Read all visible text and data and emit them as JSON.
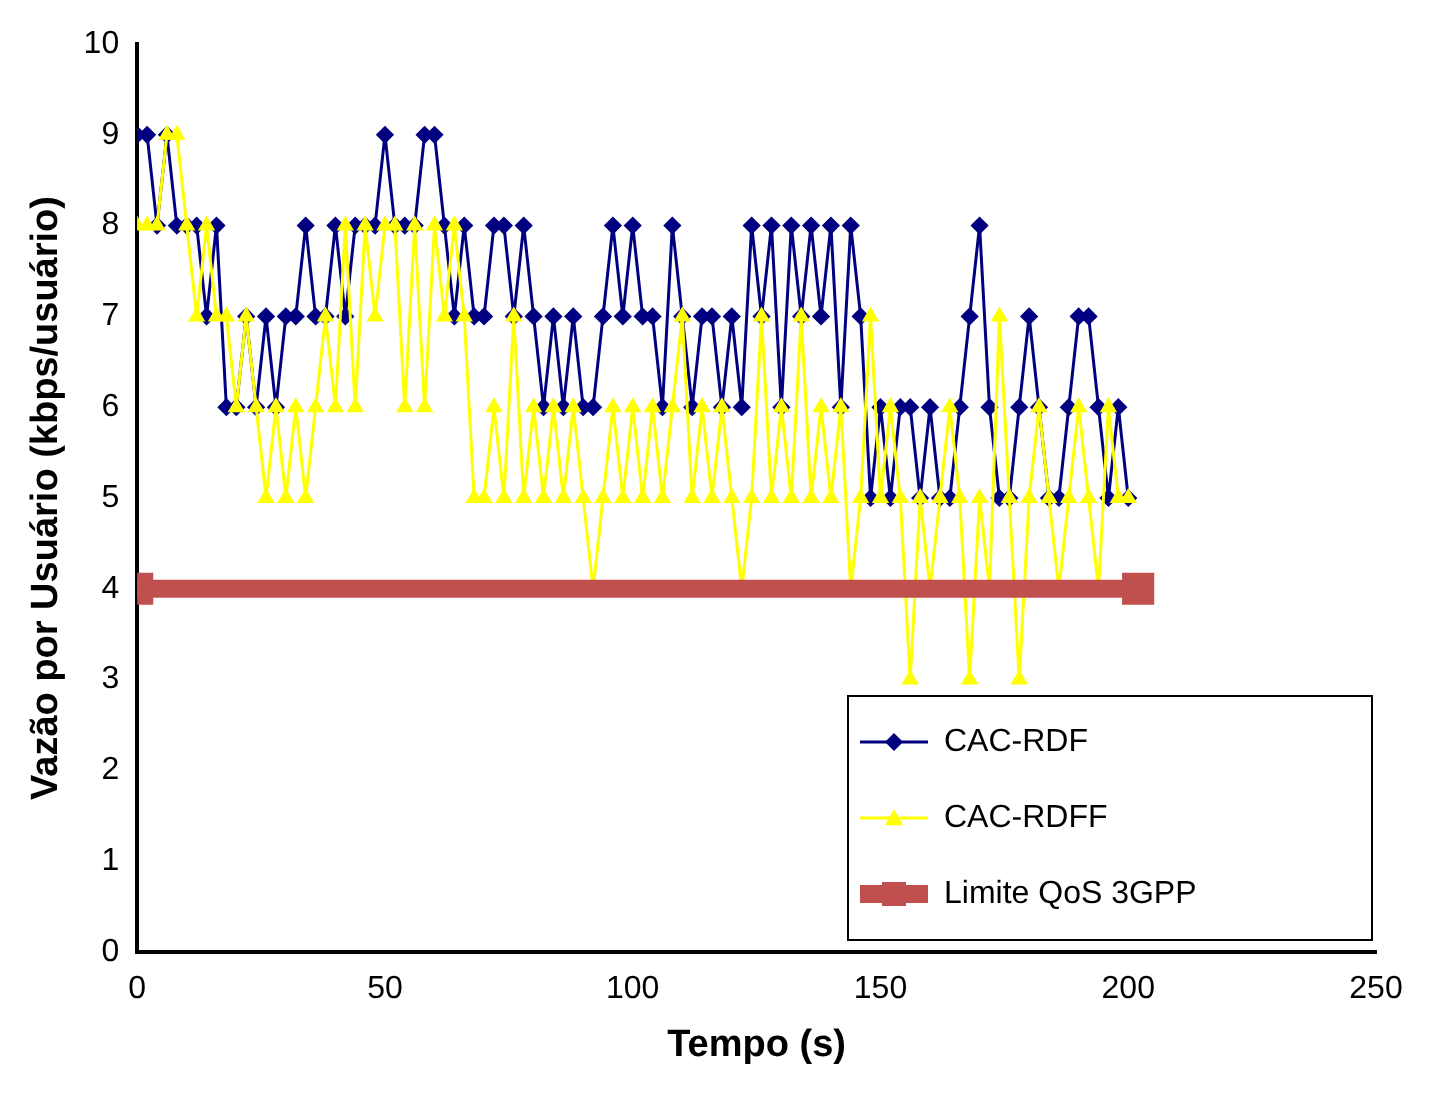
{
  "chart_data": {
    "type": "line",
    "xlabel": "Tempo (s)",
    "ylabel": "Vazão por Usuário (kbps/usuário)",
    "xlim": [
      0,
      250
    ],
    "xticks": [
      0,
      50,
      100,
      150,
      200,
      250
    ],
    "ylim": [
      0,
      10
    ],
    "yticks": [
      0,
      1,
      2,
      3,
      4,
      5,
      6,
      7,
      8,
      9,
      10
    ],
    "grid": false,
    "legend": "bottom right",
    "series": [
      {
        "name": "CAC-RDF",
        "color": "#000080",
        "marker": "diamond",
        "x": [
          0,
          2,
          4,
          6,
          8,
          10,
          12,
          14,
          16,
          18,
          20,
          22,
          24,
          26,
          28,
          30,
          32,
          34,
          36,
          38,
          40,
          42,
          44,
          46,
          48,
          50,
          52,
          54,
          56,
          58,
          60,
          62,
          64,
          66,
          68,
          70,
          72,
          74,
          76,
          78,
          80,
          82,
          84,
          86,
          88,
          90,
          92,
          94,
          96,
          98,
          100,
          102,
          104,
          106,
          108,
          110,
          112,
          114,
          116,
          118,
          120,
          122,
          124,
          126,
          128,
          130,
          132,
          134,
          136,
          138,
          140,
          142,
          144,
          146,
          148,
          150,
          152,
          154,
          156,
          158,
          160,
          162,
          164,
          166,
          168,
          170,
          172,
          174,
          176,
          178,
          180,
          182,
          184,
          186,
          188,
          190,
          192,
          194,
          196,
          198,
          200
        ],
        "values": [
          9,
          9,
          8,
          9,
          8,
          8,
          8,
          7,
          8,
          6,
          6,
          7,
          6,
          7,
          6,
          7,
          7,
          8,
          7,
          7,
          8,
          7,
          8,
          8,
          8,
          9,
          8,
          8,
          8,
          9,
          9,
          8,
          7,
          8,
          7,
          7,
          8,
          8,
          7,
          8,
          7,
          6,
          7,
          6,
          7,
          6,
          6,
          7,
          8,
          7,
          8,
          7,
          7,
          6,
          8,
          7,
          6,
          7,
          7,
          6,
          7,
          6,
          8,
          7,
          8,
          6,
          8,
          7,
          8,
          7,
          8,
          6,
          8,
          7,
          5,
          6,
          5,
          6,
          6,
          5,
          6,
          5,
          5,
          6,
          7,
          8,
          6,
          5,
          5,
          6,
          7,
          6,
          5,
          5,
          6,
          7,
          7,
          6,
          5,
          6,
          5
        ]
      },
      {
        "name": "CAC-RDFF",
        "color": "#ffff00",
        "marker": "triangle",
        "x": [
          0,
          2,
          4,
          6,
          8,
          10,
          12,
          14,
          16,
          18,
          20,
          22,
          24,
          26,
          28,
          30,
          32,
          34,
          36,
          38,
          40,
          42,
          44,
          46,
          48,
          50,
          52,
          54,
          56,
          58,
          60,
          62,
          64,
          66,
          68,
          70,
          72,
          74,
          76,
          78,
          80,
          82,
          84,
          86,
          88,
          90,
          92,
          94,
          96,
          98,
          100,
          102,
          104,
          106,
          108,
          110,
          112,
          114,
          116,
          118,
          120,
          122,
          124,
          126,
          128,
          130,
          132,
          134,
          136,
          138,
          140,
          142,
          144,
          146,
          148,
          150,
          152,
          154,
          156,
          158,
          160,
          162,
          164,
          166,
          168,
          170,
          172,
          174,
          176,
          178,
          180,
          182,
          184,
          186,
          188,
          190,
          192,
          194,
          196,
          198,
          200
        ],
        "values": [
          8,
          8,
          8,
          9,
          9,
          8,
          7,
          8,
          7,
          7,
          6,
          7,
          6,
          5,
          6,
          5,
          6,
          5,
          6,
          7,
          6,
          8,
          6,
          8,
          7,
          8,
          8,
          6,
          8,
          6,
          8,
          7,
          8,
          7,
          5,
          5,
          6,
          5,
          7,
          5,
          6,
          5,
          6,
          5,
          6,
          5,
          4,
          5,
          6,
          5,
          6,
          5,
          6,
          5,
          6,
          7,
          5,
          6,
          5,
          6,
          5,
          4,
          5,
          7,
          5,
          6,
          5,
          7,
          5,
          6,
          5,
          6,
          4,
          5,
          7,
          5,
          6,
          5,
          3,
          5,
          4,
          5,
          6,
          5,
          3,
          5,
          4,
          7,
          5,
          3,
          5,
          6,
          5,
          4,
          5,
          6,
          5,
          4,
          6,
          5,
          5
        ]
      },
      {
        "name": "Limite QoS 3GPP",
        "color": "#c0504d",
        "marker": "square",
        "x": [
          0,
          202
        ],
        "values": [
          4,
          4
        ]
      }
    ]
  }
}
